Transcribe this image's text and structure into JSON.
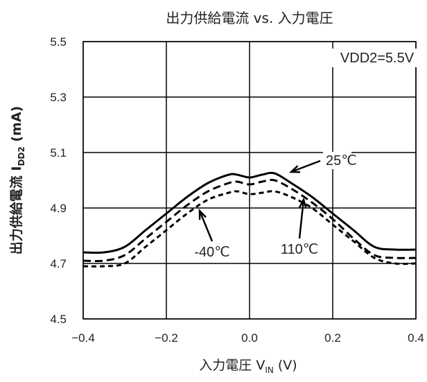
{
  "chart_data": {
    "type": "line",
    "title": "出力供給電流 vs. 入力電圧",
    "xlabel": {
      "main": "入力電圧 V",
      "sub": "IN",
      "unit": " (V)"
    },
    "ylabel": {
      "main": "出力供給電流 I",
      "sub": "DD2",
      "unit": " (mA)"
    },
    "xlim": [
      -0.4,
      0.4
    ],
    "ylim": [
      4.5,
      5.5
    ],
    "x_ticks": [
      "-0.4",
      "-0.2",
      "0.0",
      "0.2",
      "0.4"
    ],
    "y_ticks": [
      "4.5",
      "4.7",
      "4.9",
      "5.1",
      "5.3",
      "5.5"
    ],
    "grid": true,
    "condition": "VDD2=5.5V",
    "series": [
      {
        "name": "25℃",
        "style": "solid",
        "x": [
          -0.4,
          -0.35,
          -0.3,
          -0.25,
          -0.2,
          -0.15,
          -0.1,
          -0.05,
          -0.03,
          0.0,
          0.03,
          0.06,
          0.1,
          0.15,
          0.2,
          0.25,
          0.3,
          0.35,
          0.4
        ],
        "y": [
          4.74,
          4.74,
          4.76,
          4.82,
          4.88,
          4.94,
          4.99,
          5.02,
          5.02,
          5.01,
          5.02,
          5.025,
          4.99,
          4.94,
          4.88,
          4.82,
          4.76,
          4.75,
          4.75
        ]
      },
      {
        "name": "-40℃",
        "style": "dashed",
        "x": [
          -0.4,
          -0.35,
          -0.3,
          -0.25,
          -0.2,
          -0.15,
          -0.1,
          -0.05,
          -0.03,
          0.0,
          0.03,
          0.06,
          0.1,
          0.15,
          0.2,
          0.25,
          0.3,
          0.35,
          0.4
        ],
        "y": [
          4.71,
          4.71,
          4.73,
          4.79,
          4.85,
          4.91,
          4.96,
          4.99,
          4.995,
          4.985,
          4.995,
          5.0,
          4.97,
          4.92,
          4.86,
          4.79,
          4.73,
          4.72,
          4.72
        ]
      },
      {
        "name": "110℃",
        "style": "dashed",
        "x": [
          -0.4,
          -0.35,
          -0.3,
          -0.25,
          -0.2,
          -0.15,
          -0.1,
          -0.05,
          -0.03,
          0.0,
          0.03,
          0.06,
          0.1,
          0.15,
          0.2,
          0.25,
          0.3,
          0.35,
          0.4
        ],
        "y": [
          4.69,
          4.69,
          4.7,
          4.76,
          4.82,
          4.88,
          4.93,
          4.955,
          4.96,
          4.95,
          4.955,
          4.96,
          4.94,
          4.9,
          4.84,
          4.78,
          4.72,
          4.7,
          4.7
        ]
      }
    ],
    "annotations": [
      {
        "text": "25℃",
        "point": [
          0.1,
          5.03
        ],
        "tail": [
          0.17,
          5.07
        ]
      },
      {
        "text": "-40℃",
        "point": [
          -0.12,
          4.89
        ],
        "tail": [
          -0.09,
          4.78
        ]
      },
      {
        "text": "110℃",
        "point": [
          0.13,
          4.93
        ],
        "tail": [
          0.12,
          4.79
        ]
      }
    ]
  }
}
